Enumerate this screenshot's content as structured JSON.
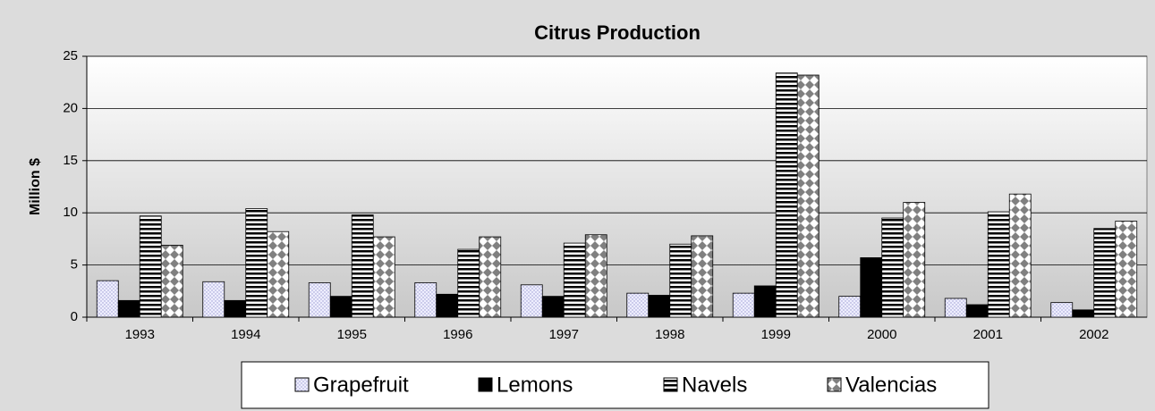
{
  "chart_data": {
    "type": "bar",
    "title": "Citrus Production",
    "y_label": "Million $",
    "categories": [
      "1993",
      "1994",
      "1995",
      "1996",
      "1997",
      "1998",
      "1999",
      "2000",
      "2001",
      "2002"
    ],
    "series": [
      {
        "name": "Grapefruit",
        "color": "#9999cc",
        "pattern": "dots",
        "values": [
          3.5,
          3.4,
          3.3,
          3.3,
          3.1,
          2.3,
          2.3,
          2.0,
          1.8,
          1.4
        ]
      },
      {
        "name": "Lemons",
        "color": "#000000",
        "pattern": "solid",
        "values": [
          1.6,
          1.6,
          2.0,
          2.2,
          2.0,
          2.1,
          3.0,
          5.7,
          1.2,
          0.7
        ]
      },
      {
        "name": "Navels",
        "color": "#000000",
        "pattern": "stripes",
        "values": [
          9.7,
          10.4,
          9.8,
          6.5,
          7.1,
          7.0,
          23.4,
          9.5,
          10.1,
          8.5
        ]
      },
      {
        "name": "Valencias",
        "color": "#808080",
        "pattern": "diamonds",
        "values": [
          6.9,
          8.2,
          7.7,
          7.7,
          7.9,
          7.8,
          23.2,
          11.0,
          11.8,
          9.2
        ]
      }
    ],
    "ylim": [
      0,
      25
    ],
    "yticks": [
      0,
      5,
      10,
      15,
      20,
      25
    ],
    "grid": true,
    "legend": "bottom"
  }
}
